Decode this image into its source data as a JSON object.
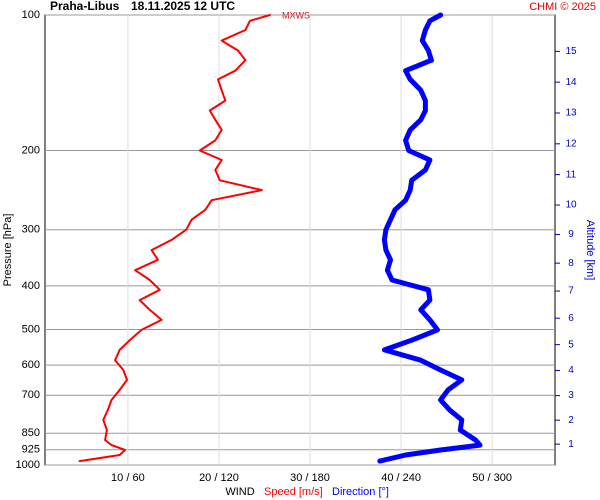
{
  "chart_data": {
    "type": "line",
    "title": "Praha-Libus",
    "subtitle": "18.11.2025 12 UTC",
    "credit": "CHMI © 2025",
    "annotation": "MXWS",
    "x_label": "WIND",
    "y_label": "Pressure [hPa]",
    "y2_label": "Altitude [km]",
    "y_scale": "log",
    "grid": true,
    "levels": [
      980,
      950,
      926,
      903,
      880,
      836,
      794,
      755,
      717,
      681,
      647,
      615,
      585,
      555,
      528,
      501,
      476,
      452,
      430,
      408,
      388,
      369,
      350,
      333,
      316,
      300,
      285,
      271,
      258,
      245,
      233,
      221,
      210,
      200,
      190,
      180,
      171,
      163,
      155,
      147,
      139,
      133,
      126,
      120,
      114,
      108,
      103,
      100
    ],
    "series": [
      {
        "name": "Speed [m/s]",
        "color": "#ff0000",
        "values": [
          4.7,
          9.1,
          9.7,
          8.2,
          7.5,
          7.7,
          7.3,
          7.8,
          8.2,
          9.1,
          9.9,
          9.5,
          8.6,
          9.1,
          10.2,
          11.5,
          13.7,
          12.4,
          11.3,
          13.5,
          12.4,
          10.8,
          13.3,
          12.6,
          14.8,
          16.4,
          17,
          18.5,
          19.2,
          24.7,
          20.1,
          19.6,
          20.3,
          17.9,
          19.6,
          20.3,
          19.6,
          19,
          20.7,
          20.3,
          19.9,
          21.8,
          22.9,
          22.1,
          20.3,
          22.9,
          23.4,
          25.6
        ]
      },
      {
        "name": "Direction [°]",
        "color": "#0000ff",
        "axis": "x2",
        "values": [
          226,
          243,
          266,
          292,
          289,
          279,
          280,
          272,
          266,
          271,
          280,
          266,
          253,
          229,
          247,
          264,
          259,
          253,
          259,
          258,
          234,
          231,
          233,
          230,
          229,
          230,
          233,
          236,
          243,
          246,
          247,
          256,
          259,
          245,
          243,
          246,
          253,
          256,
          256,
          253,
          246,
          243,
          260,
          258,
          254,
          256,
          259,
          266
        ]
      }
    ],
    "xlim": [
      0.9,
      56.9
    ],
    "x2lim": [
      5.4,
      341.4
    ],
    "xticks": [
      {
        "value": 10,
        "label": "10 / 60"
      },
      {
        "value": 20,
        "label": "20 / 120"
      },
      {
        "value": 30,
        "label": "30 / 180"
      },
      {
        "value": 40,
        "label": "40 / 240"
      },
      {
        "value": 50,
        "label": "50 / 300"
      }
    ],
    "ylim": [
      1000,
      100
    ],
    "yticks": [
      100,
      200,
      300,
      400,
      500,
      600,
      700,
      850,
      925,
      1000
    ],
    "y2ticks": [
      1,
      2,
      3,
      4,
      5,
      6,
      7,
      8,
      9,
      10,
      11,
      12,
      13,
      14,
      15
    ]
  }
}
